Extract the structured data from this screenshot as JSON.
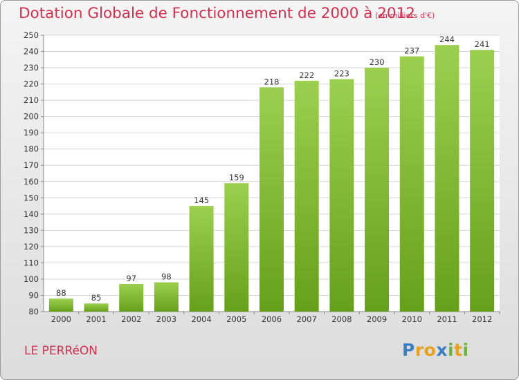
{
  "header": {
    "title": "Dotation Globale de Fonctionnement de 2000 à 2012",
    "subtitle": "(en milliers d'€)"
  },
  "footer": {
    "commune": "LE PERRéON",
    "logo": {
      "text": "Proxiti",
      "letters": [
        {
          "char": "P",
          "color": "#3a7fc4"
        },
        {
          "char": "r",
          "color": "#e8a020"
        },
        {
          "char": "o",
          "color": "#e8a020"
        },
        {
          "char": "x",
          "color": "#3a7fc4"
        },
        {
          "char": "i",
          "color": "#6cb33f"
        },
        {
          "char": "t",
          "color": "#e8a020"
        },
        {
          "char": "i",
          "color": "#6cb33f"
        }
      ]
    }
  },
  "chart_data": {
    "type": "bar",
    "title": "Dotation Globale de Fonctionnement de 2000 à 2012",
    "subtitle": "(en milliers d'€)",
    "categories": [
      "2000",
      "2001",
      "2002",
      "2003",
      "2004",
      "2005",
      "2006",
      "2007",
      "2008",
      "2009",
      "2010",
      "2011",
      "2012"
    ],
    "values": [
      88,
      85,
      97,
      98,
      145,
      159,
      218,
      222,
      223,
      230,
      237,
      244,
      241
    ],
    "ylim": [
      80,
      250
    ],
    "ytick_step": 10,
    "grid": true,
    "bar_color_top": "#9ccf4f",
    "bar_color_bottom": "#66a01a",
    "title_color": "#d2304f"
  }
}
